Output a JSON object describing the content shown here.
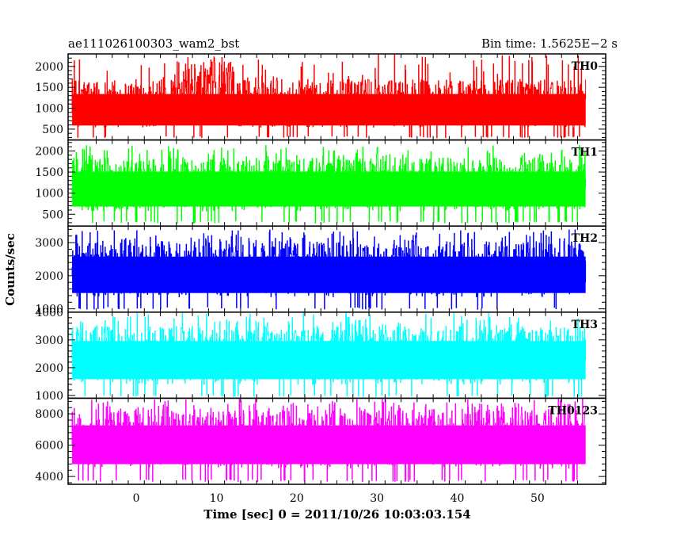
{
  "chart_data": {
    "type": "line",
    "title_left": "ae111026100303_wam2_bst",
    "title_right": "Bin time: 1.5625E−2 s",
    "xlabel": "Time [sec] 0 = 2011/10/26 10:03:03.154",
    "ylabel": "Counts/sec",
    "xlim": [
      -8.5,
      58.5
    ],
    "x_ticks": [
      0,
      10,
      20,
      30,
      40,
      50
    ],
    "x_data_range": [
      -8,
      56
    ],
    "bin_time_s": 0.015625,
    "panels": [
      {
        "name": "TH0",
        "color": "#ff0000",
        "ylim": [
          240,
          2300
        ],
        "y_ticks": [
          500,
          1000,
          1500,
          2000
        ],
        "mean": 900,
        "low": 330,
        "high": 1700,
        "max": 2300,
        "noise_spike_region": [
          6,
          12
        ]
      },
      {
        "name": "TH1",
        "color": "#00ff00",
        "ylim": [
          220,
          2260
        ],
        "y_ticks": [
          500,
          1000,
          1500,
          2000
        ],
        "mean": 1100,
        "low": 340,
        "high": 1850,
        "max": 2150
      },
      {
        "name": "TH2",
        "color": "#0000ff",
        "ylim": [
          900,
          3500
        ],
        "y_ticks": [
          1000,
          2000,
          3000
        ],
        "mean": 2000,
        "low": 1050,
        "high": 3050,
        "max": 3400
      },
      {
        "name": "TH3",
        "color": "#00ffff",
        "ylim": [
          900,
          4000
        ],
        "y_ticks": [
          1000,
          2000,
          3000,
          4000
        ],
        "mean": 2300,
        "low": 1000,
        "high": 3500,
        "max": 4000
      },
      {
        "name": "TH0123",
        "color": "#ff00ff",
        "ylim": [
          3500,
          9000
        ],
        "y_ticks": [
          4000,
          6000,
          8000
        ],
        "mean": 6000,
        "low": 3800,
        "high": 8300,
        "max": 9000
      }
    ]
  }
}
